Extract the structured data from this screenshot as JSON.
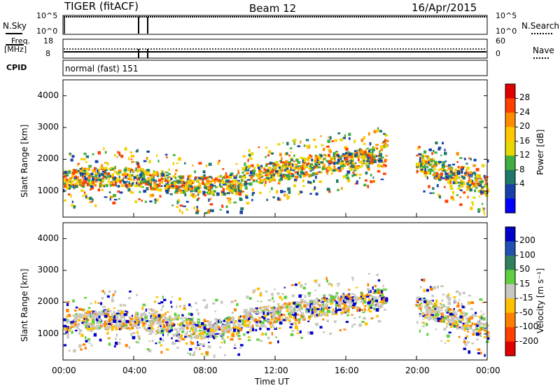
{
  "header": {
    "radar": "TIGER (fitACF)",
    "beam": "Beam 12",
    "date": "16/Apr/2015"
  },
  "top_panels": {
    "nsky_label": "N.Sky",
    "nsky_ticks": [
      "10^5",
      "10^0"
    ],
    "nsearch_label": "N.Search",
    "nsearch_ticks": [
      "10^5",
      "10^0"
    ],
    "freq_label_1": "Freq.",
    "freq_label_2": "[MHz]",
    "freq_ticks": [
      "18",
      "8"
    ],
    "nave_label": "Nave",
    "nave_ticks": [
      "60",
      "0"
    ],
    "cpid_label": "CPID",
    "cpid_value": "normal (fast) 151"
  },
  "chart_data": [
    {
      "type": "heatmap",
      "name": "power",
      "ylabel": "Slant Range [km]",
      "xlabel": "Time UT",
      "yticks": [
        "4000",
        "3000",
        "2000",
        "1000"
      ],
      "ylim": [
        180,
        4500
      ],
      "xticks": [
        "00:00",
        "04:00",
        "08:00",
        "12:00",
        "16:00",
        "20:00",
        "00:00"
      ],
      "colorbar_label": "Power [dB]",
      "colorbar_ticks": [
        "28",
        "24",
        "20",
        "16",
        "12",
        "8",
        "4"
      ],
      "colorbar_colors": [
        "#e00000",
        "#ff4000",
        "#ff8c00",
        "#ffc800",
        "#e8d800",
        "#40b040",
        "#207868",
        "#1840a8",
        "#0000ff"
      ]
    },
    {
      "type": "heatmap",
      "name": "velocity",
      "ylabel": "Slant Range [km]",
      "xlabel": "Time UT",
      "yticks": [
        "4000",
        "3000",
        "2000",
        "1000"
      ],
      "ylim": [
        180,
        4500
      ],
      "xticks": [
        "00:00",
        "04:00",
        "08:00",
        "12:00",
        "16:00",
        "20:00",
        "00:00"
      ],
      "colorbar_label": "Velocity [m s⁻¹]",
      "colorbar_ticks": [
        "200",
        "100",
        "50",
        "15",
        "-15",
        "-50",
        "-100",
        "-200"
      ],
      "colorbar_colors": [
        "#0000c8",
        "#2050b0",
        "#308060",
        "#60d040",
        "#c8c8c0",
        "#ffc000",
        "#ff8000",
        "#ff4000",
        "#e00000"
      ]
    }
  ],
  "x_axis": {
    "ticks": [
      "00:00",
      "04:00",
      "08:00",
      "12:00",
      "16:00",
      "20:00",
      "00:00"
    ],
    "label": "Time UT"
  }
}
